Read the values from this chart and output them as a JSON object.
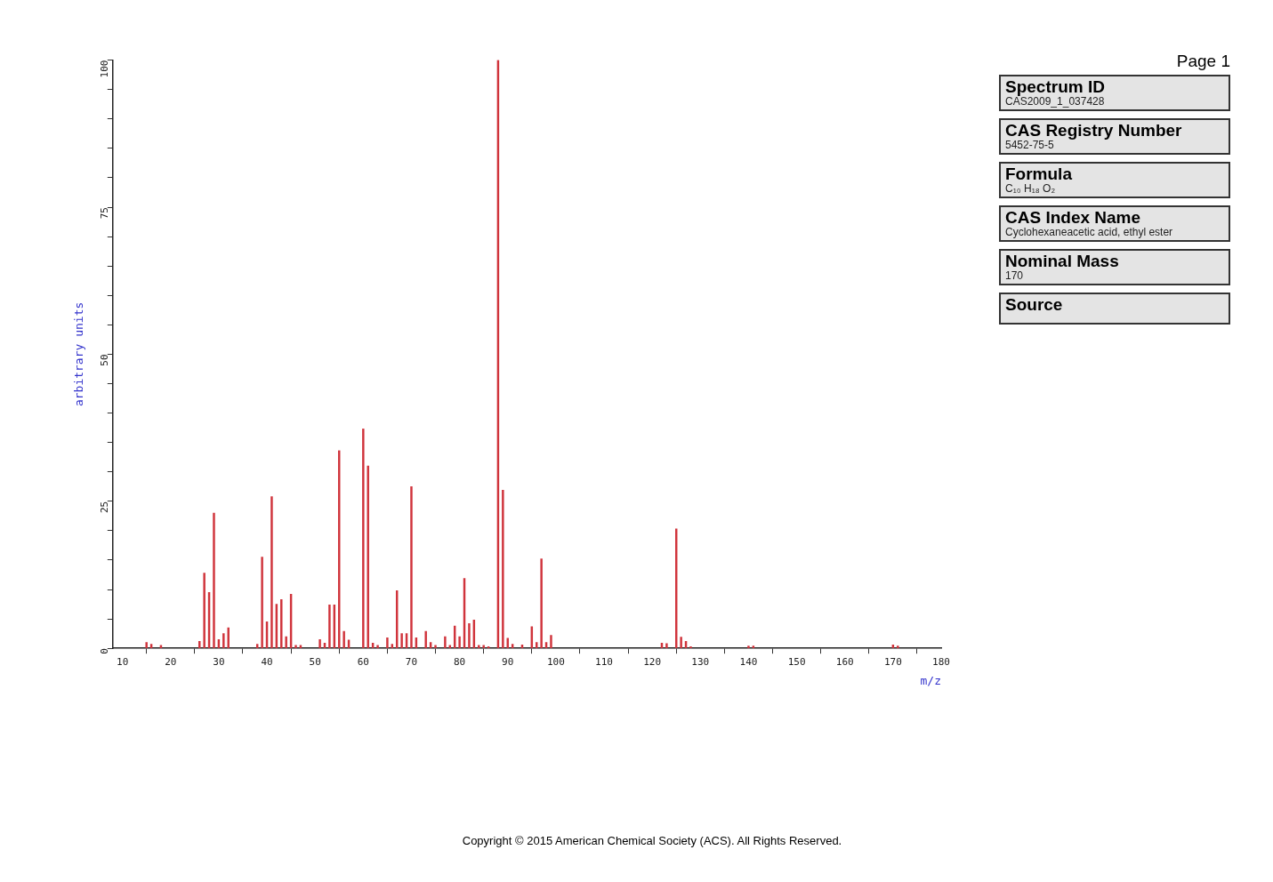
{
  "chart_data": [
    {
      "type": "bar",
      "xlabel": "m/z",
      "ylabel": "arbitrary units",
      "grid": false,
      "legend": false,
      "color": "#d0343c",
      "x": [
        15,
        16,
        18,
        26,
        27,
        28,
        29,
        30,
        31,
        32,
        38,
        39,
        40,
        41,
        42,
        43,
        44,
        45,
        46,
        47,
        51,
        52,
        53,
        54,
        55,
        56,
        57,
        60,
        61,
        62,
        63,
        65,
        66,
        67,
        68,
        69,
        70,
        71,
        73,
        74,
        75,
        77,
        78,
        79,
        80,
        81,
        82,
        83,
        84,
        85,
        86,
        88,
        89,
        90,
        91,
        93,
        95,
        96,
        97,
        98,
        99,
        122,
        123,
        125,
        126,
        127,
        128,
        140,
        141,
        170,
        171
      ],
      "values": [
        1,
        0.7,
        0.5,
        1.2,
        12.8,
        9.5,
        23,
        1.5,
        2.5,
        3.5,
        0.7,
        15.5,
        4.5,
        25.8,
        7.5,
        8.3,
        2,
        9.2,
        0.5,
        0.5,
        1.5,
        0.9,
        7.4,
        7.4,
        33.6,
        2.9,
        1.4,
        37.3,
        31,
        0.9,
        0.5,
        1.8,
        0.7,
        9.8,
        2.5,
        2.5,
        27.5,
        1.8,
        2.9,
        1,
        0.5,
        2,
        0.5,
        3.8,
        2,
        11.9,
        4.2,
        4.8,
        0.5,
        0.5,
        0.3,
        100,
        26.9,
        1.7,
        0.7,
        0.6,
        3.7,
        1,
        15.2,
        1,
        2.2,
        0.9,
        0.8,
        20.3,
        1.9,
        1.2,
        0.3,
        0.4,
        0.4,
        0.6,
        0.4
      ],
      "xlim": [
        8,
        180
      ],
      "xticks": [
        10,
        20,
        30,
        40,
        50,
        60,
        70,
        80,
        90,
        100,
        110,
        120,
        130,
        140,
        150,
        160,
        170,
        180
      ],
      "ylim": [
        0,
        100
      ],
      "yticks": [
        0,
        {
          "value": 5,
          "label": null
        },
        {
          "value": 10,
          "label": null
        },
        {
          "value": 15,
          "label": null
        },
        {
          "value": 20,
          "label": null
        },
        25,
        {
          "value": 30,
          "label": null
        },
        {
          "value": 35,
          "label": null
        },
        {
          "value": 40,
          "label": null
        },
        {
          "value": 45,
          "label": null
        },
        50,
        {
          "value": 55,
          "label": null
        },
        {
          "value": 60,
          "label": null
        },
        {
          "value": 65,
          "label": null
        },
        {
          "value": 70,
          "label": null
        },
        75,
        {
          "value": 80,
          "label": null
        },
        {
          "value": 85,
          "label": null
        },
        {
          "value": 90,
          "label": null
        },
        {
          "value": 95,
          "label": null
        },
        100
      ],
      "annotations": [
        "Copyright © 2015  American Chemical Society (ACS). All Rights Reserved."
      ]
    },
    {
      "type": "other",
      "annotations": [
        "Page 1"
      ],
      "categories": [
        "Spectrum ID",
        "CAS Registry Number",
        "Formula",
        "CAS Index Name",
        "Nominal Mass",
        "Source"
      ],
      "value_labels": [
        "CAS2009_1_037428",
        "5452-75-5",
        "C₁₀ H₁₈ O₂",
        "Cyclohexaneacetic acid, ethyl ester",
        "170",
        null
      ]
    }
  ]
}
